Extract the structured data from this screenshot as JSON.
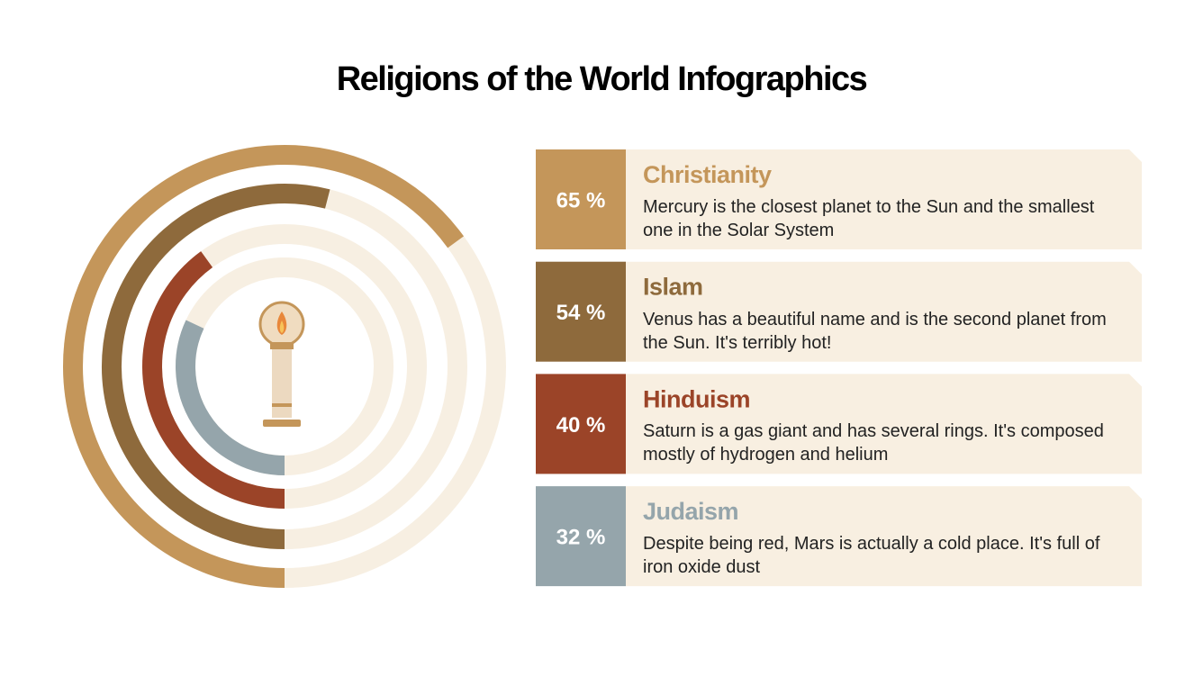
{
  "chart_data": {
    "type": "radial_bar",
    "title": "Religions of the World Infographics",
    "categories": [
      "Christianity",
      "Islam",
      "Hinduism",
      "Judaism"
    ],
    "values": [
      65,
      54,
      40,
      32
    ],
    "value_labels": [
      "65 %",
      "54 %",
      "40 %",
      "32 %"
    ],
    "descriptions": [
      "Mercury is the closest planet to the Sun and the smallest one in the Solar System",
      "Venus has a beautiful name and is the second planet from the Sun. It's terribly hot!",
      "Saturn is a gas giant and has several rings. It's composed mostly of hydrogen and helium",
      "Despite being red, Mars is actually a cold place. It's full of iron oxide dust"
    ],
    "colors": [
      "#c4965a",
      "#8e6a3c",
      "#9b4428",
      "#95a5ab"
    ],
    "ylim": [
      0,
      100
    ]
  }
}
